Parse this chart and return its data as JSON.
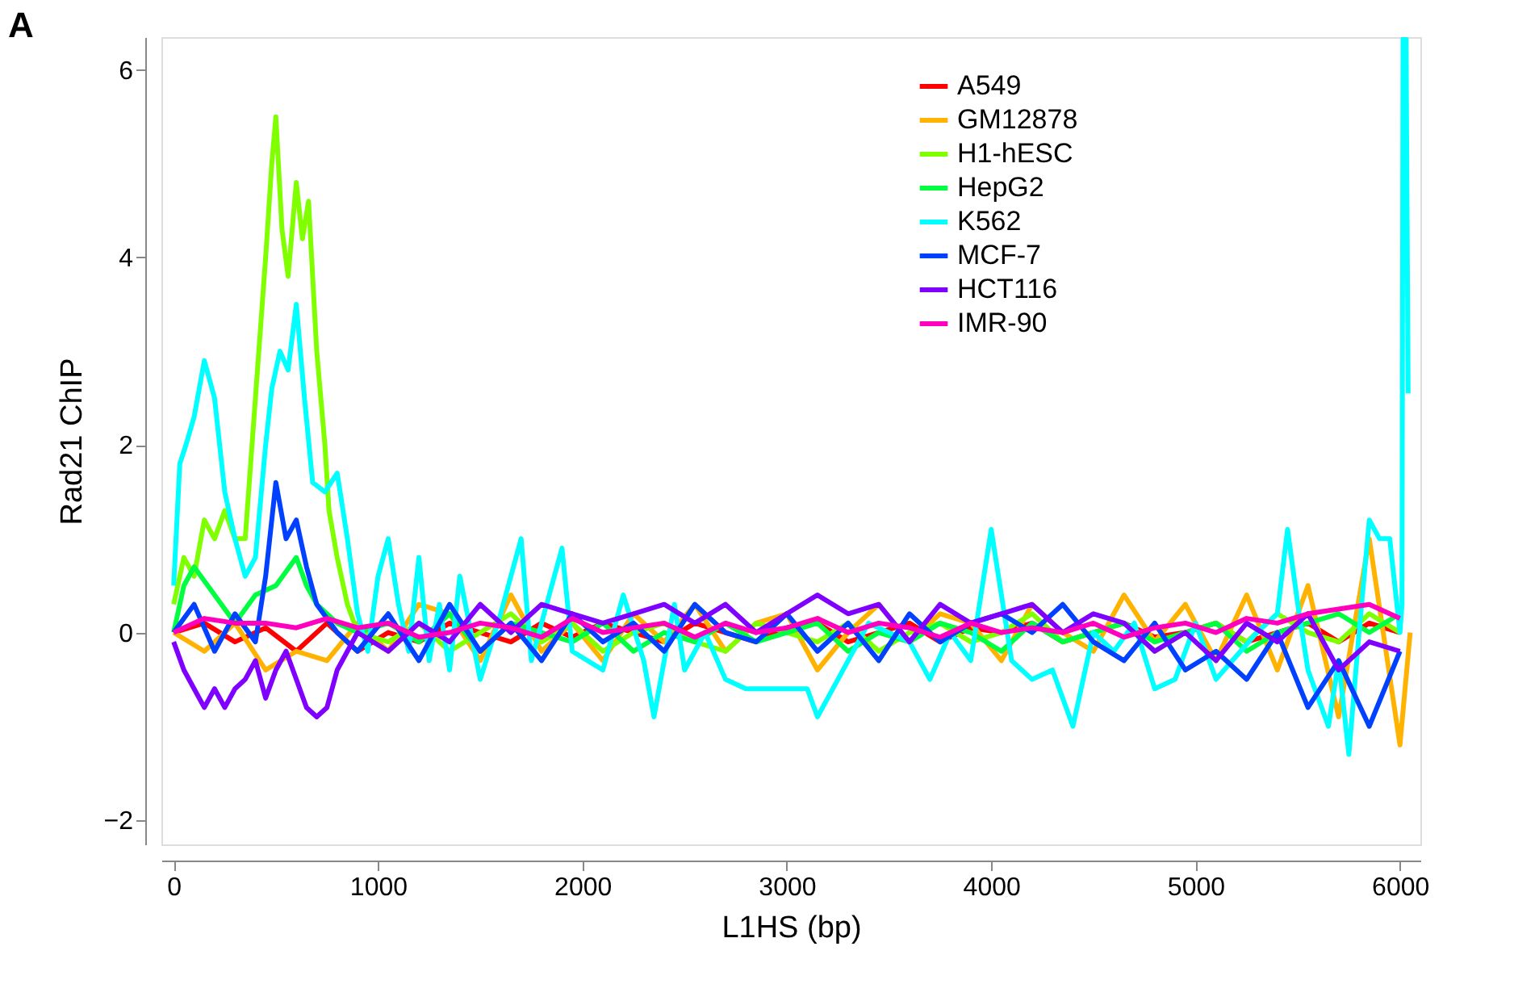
{
  "chart_data": {
    "type": "line",
    "annotations": [
      "A"
    ],
    "xlabel": "L1HS (bp)",
    "ylabel": "Rad21 ChIP",
    "xlim": [
      -60,
      6100
    ],
    "xticks": [
      0,
      1000,
      2000,
      3000,
      4000,
      5000,
      6000
    ],
    "ylim": [
      -2.26,
      6.35
    ],
    "yticks": [
      -2,
      0,
      2,
      4,
      6
    ],
    "grid": false,
    "legend": "top right",
    "line_style": "solid",
    "marker": "none",
    "series": [
      {
        "name": "A549",
        "color": "#ff0000",
        "x": [
          0,
          150,
          300,
          450,
          600,
          750,
          900,
          1050,
          1200,
          1350,
          1500,
          1650,
          1800,
          1950,
          2100,
          2250,
          2400,
          2550,
          2700,
          2850,
          3000,
          3150,
          3300,
          3450,
          3600,
          3750,
          3900,
          4050,
          4200,
          4350,
          4500,
          4650,
          4800,
          4950,
          5100,
          5250,
          5400,
          5550,
          5700,
          5850,
          6000
        ],
        "values": [
          0,
          0.1,
          -0.1,
          0.05,
          -0.2,
          0.1,
          -0.2,
          0.0,
          -0.1,
          0.1,
          0.0,
          -0.1,
          0.1,
          -0.05,
          0.1,
          0.0,
          -0.1,
          0.1,
          0.0,
          -0.1,
          0.05,
          0.1,
          -0.1,
          0.0,
          0.1,
          -0.1,
          0.05,
          0.0,
          0.1,
          -0.1,
          0.0,
          0.1,
          -0.05,
          0.0,
          0.1,
          -0.1,
          0.0,
          0.1,
          -0.1,
          0.1,
          0.0
        ]
      },
      {
        "name": "GM12878",
        "color": "#ffb300",
        "x": [
          0,
          150,
          300,
          450,
          600,
          750,
          900,
          1050,
          1200,
          1350,
          1500,
          1650,
          1800,
          1950,
          2100,
          2250,
          2400,
          2550,
          2700,
          2850,
          3000,
          3150,
          3300,
          3450,
          3600,
          3750,
          3900,
          4050,
          4200,
          4350,
          4500,
          4650,
          4800,
          4950,
          5100,
          5250,
          5400,
          5550,
          5700,
          5850,
          6000,
          6050
        ],
        "values": [
          0,
          -0.2,
          0.1,
          -0.4,
          -0.2,
          -0.3,
          0.1,
          -0.2,
          0.3,
          0.2,
          -0.3,
          0.4,
          -0.2,
          0.1,
          -0.3,
          0.2,
          -0.1,
          0.3,
          -0.2,
          0.1,
          0.2,
          -0.4,
          0.0,
          0.3,
          -0.1,
          0.2,
          0.1,
          -0.3,
          0.3,
          0.0,
          -0.2,
          0.4,
          -0.1,
          0.3,
          -0.3,
          0.4,
          -0.4,
          0.5,
          -0.9,
          1.0,
          -1.2,
          0.0
        ]
      },
      {
        "name": "H1-hESC",
        "color": "#80ff00",
        "x": [
          0,
          50,
          100,
          150,
          200,
          250,
          300,
          350,
          400,
          450,
          480,
          500,
          530,
          560,
          600,
          630,
          660,
          700,
          740,
          760,
          800,
          850,
          900,
          1050,
          1200,
          1350,
          1500,
          1650,
          1800,
          1950,
          2100,
          2250,
          2400,
          2550,
          2700,
          2850,
          3000,
          3150,
          3300,
          3450,
          3600,
          3750,
          3900,
          4050,
          4200,
          4350,
          4500,
          4650,
          4800,
          4950,
          5100,
          5250,
          5400,
          5550,
          5700,
          5850,
          6000
        ],
        "values": [
          0.3,
          0.8,
          0.6,
          1.2,
          1.0,
          1.3,
          1.0,
          1.0,
          2.5,
          4.0,
          5.0,
          5.5,
          4.3,
          3.8,
          4.8,
          4.2,
          4.6,
          3.0,
          2.0,
          1.3,
          0.8,
          0.3,
          0.0,
          -0.1,
          0.1,
          -0.2,
          0.0,
          0.2,
          -0.1,
          0.1,
          -0.2,
          0.0,
          0.1,
          -0.1,
          -0.2,
          0.1,
          0.0,
          -0.1,
          0.1,
          -0.2,
          0.0,
          0.1,
          -0.1,
          0.0,
          0.2,
          -0.1,
          0.0,
          0.1,
          -0.2,
          0.0,
          0.1,
          -0.1,
          0.2,
          0.0,
          -0.1,
          0.2,
          0.0
        ]
      },
      {
        "name": "HepG2",
        "color": "#00ff40",
        "x": [
          0,
          50,
          100,
          200,
          300,
          400,
          500,
          600,
          650,
          700,
          800,
          900,
          1050,
          1200,
          1350,
          1500,
          1650,
          1800,
          1950,
          2100,
          2250,
          2400,
          2550,
          2700,
          2850,
          3000,
          3150,
          3300,
          3450,
          3600,
          3750,
          3900,
          4050,
          4200,
          4350,
          4500,
          4650,
          4800,
          4950,
          5100,
          5250,
          5400,
          5550,
          5700,
          5850,
          6000
        ],
        "values": [
          0,
          0.5,
          0.7,
          0.4,
          0.1,
          0.4,
          0.5,
          0.8,
          0.5,
          0.3,
          0.1,
          0.0,
          0.1,
          -0.1,
          0.2,
          -0.2,
          0.1,
          0.0,
          -0.1,
          0.1,
          -0.2,
          0.0,
          -0.1,
          0.1,
          -0.1,
          0.0,
          0.1,
          -0.2,
          0.0,
          -0.1,
          0.1,
          0.0,
          -0.2,
          0.1,
          -0.1,
          0.0,
          0.1,
          -0.1,
          0.0,
          0.1,
          -0.2,
          0.0,
          0.1,
          0.2,
          0.0,
          0.2
        ]
      },
      {
        "name": "K562",
        "color": "#00ffff",
        "x": [
          0,
          30,
          60,
          100,
          150,
          200,
          250,
          300,
          350,
          400,
          450,
          480,
          520,
          560,
          600,
          640,
          680,
          740,
          800,
          850,
          900,
          950,
          1000,
          1050,
          1100,
          1150,
          1200,
          1250,
          1300,
          1350,
          1400,
          1500,
          1600,
          1700,
          1750,
          1900,
          1950,
          2100,
          2200,
          2300,
          2350,
          2450,
          2500,
          2600,
          2700,
          2800,
          3100,
          3150,
          3250,
          3400,
          3600,
          3700,
          3800,
          3900,
          4000,
          4100,
          4200,
          4300,
          4400,
          4500,
          4600,
          4700,
          4800,
          4900,
          5000,
          5100,
          5300,
          5400,
          5450,
          5500,
          5550,
          5650,
          5700,
          5750,
          5800,
          5850,
          5900,
          5950,
          6000,
          6010,
          6015,
          6030,
          6040
        ],
        "values": [
          0.5,
          1.8,
          2.0,
          2.3,
          2.9,
          2.5,
          1.5,
          1.0,
          0.6,
          0.8,
          2.0,
          2.6,
          3.0,
          2.8,
          3.5,
          2.5,
          1.6,
          1.5,
          1.7,
          1.0,
          0.2,
          -0.2,
          0.6,
          1.0,
          0.3,
          -0.2,
          0.8,
          -0.3,
          0.3,
          -0.4,
          0.6,
          -0.5,
          0.2,
          1.0,
          -0.3,
          0.9,
          -0.2,
          -0.4,
          0.4,
          -0.3,
          -0.9,
          0.3,
          -0.4,
          0.0,
          -0.5,
          -0.6,
          -0.6,
          -0.9,
          -0.5,
          0.1,
          -0.1,
          -0.5,
          0.0,
          -0.3,
          1.1,
          -0.3,
          -0.5,
          -0.4,
          -1.0,
          0.0,
          -0.2,
          0.1,
          -0.6,
          -0.5,
          0.1,
          -0.5,
          0.0,
          0.2,
          1.1,
          0.3,
          -0.4,
          -1.0,
          -0.3,
          -1.3,
          0.0,
          1.2,
          1.0,
          1.0,
          0.0,
          0.3,
          6.33,
          6.33,
          2.55
        ]
      },
      {
        "name": "MCF-7",
        "color": "#0040ff",
        "x": [
          0,
          100,
          200,
          300,
          400,
          450,
          500,
          550,
          600,
          650,
          700,
          800,
          900,
          1050,
          1200,
          1350,
          1500,
          1650,
          1800,
          1950,
          2100,
          2250,
          2400,
          2550,
          2700,
          2850,
          3000,
          3150,
          3300,
          3450,
          3600,
          3750,
          3900,
          4050,
          4200,
          4350,
          4500,
          4650,
          4800,
          4950,
          5100,
          5250,
          5400,
          5550,
          5700,
          5850,
          6000
        ],
        "values": [
          0,
          0.3,
          -0.2,
          0.2,
          -0.1,
          0.6,
          1.6,
          1.0,
          1.2,
          0.7,
          0.3,
          0.0,
          -0.2,
          0.2,
          -0.3,
          0.3,
          -0.2,
          0.1,
          -0.3,
          0.2,
          -0.1,
          0.1,
          -0.2,
          0.3,
          0.0,
          -0.1,
          0.2,
          -0.2,
          0.1,
          -0.3,
          0.2,
          -0.1,
          0.1,
          0.2,
          0.0,
          0.3,
          -0.1,
          -0.3,
          0.1,
          -0.4,
          -0.2,
          -0.5,
          0.0,
          -0.8,
          -0.3,
          -1.0,
          -0.2
        ]
      },
      {
        "name": "HCT116",
        "color": "#8000ff",
        "x": [
          0,
          50,
          100,
          150,
          200,
          250,
          300,
          350,
          400,
          450,
          500,
          550,
          600,
          650,
          700,
          750,
          800,
          900,
          1050,
          1200,
          1350,
          1500,
          1650,
          1800,
          1950,
          2100,
          2250,
          2400,
          2550,
          2700,
          2850,
          3000,
          3150,
          3300,
          3450,
          3600,
          3750,
          3900,
          4050,
          4200,
          4350,
          4500,
          4650,
          4800,
          4950,
          5100,
          5250,
          5400,
          5550,
          5700,
          5850,
          6000
        ],
        "values": [
          -0.1,
          -0.4,
          -0.6,
          -0.8,
          -0.6,
          -0.8,
          -0.6,
          -0.5,
          -0.3,
          -0.7,
          -0.4,
          -0.2,
          -0.5,
          -0.8,
          -0.9,
          -0.8,
          -0.4,
          0.0,
          -0.2,
          0.1,
          -0.1,
          0.3,
          0.0,
          0.3,
          0.2,
          0.1,
          0.2,
          0.3,
          0.1,
          0.3,
          0.0,
          0.2,
          0.4,
          0.2,
          0.3,
          -0.1,
          0.3,
          0.1,
          0.2,
          0.3,
          0.0,
          0.2,
          0.1,
          -0.2,
          0.0,
          -0.3,
          0.1,
          -0.1,
          0.2,
          -0.4,
          -0.1,
          -0.2
        ]
      },
      {
        "name": "IMR-90",
        "color": "#ff00bf",
        "x": [
          0,
          150,
          300,
          450,
          600,
          750,
          900,
          1050,
          1200,
          1350,
          1500,
          1650,
          1800,
          1950,
          2100,
          2250,
          2400,
          2550,
          2700,
          2850,
          3000,
          3150,
          3300,
          3450,
          3600,
          3750,
          3900,
          4050,
          4200,
          4350,
          4500,
          4650,
          4800,
          4950,
          5100,
          5250,
          5400,
          5550,
          5700,
          5850,
          6000
        ],
        "values": [
          0,
          0.15,
          0.1,
          0.1,
          0.05,
          0.15,
          0.05,
          0.1,
          -0.05,
          0.0,
          0.1,
          0.05,
          -0.05,
          0.15,
          0.0,
          0.05,
          0.1,
          -0.05,
          0.1,
          0.0,
          0.05,
          0.15,
          0.0,
          0.1,
          0.05,
          -0.05,
          0.1,
          0.0,
          0.05,
          0.0,
          0.1,
          -0.05,
          0.05,
          0.1,
          0.0,
          0.15,
          0.1,
          0.2,
          0.25,
          0.3,
          0.15
        ]
      }
    ]
  }
}
